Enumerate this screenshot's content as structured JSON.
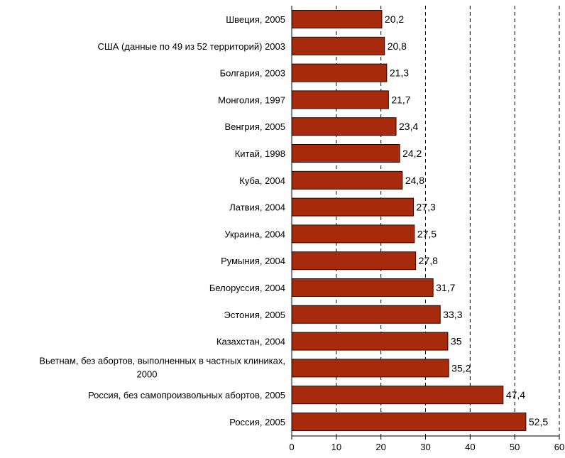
{
  "colors": {
    "bar_fill": "#a82a0c",
    "bar_stroke": "#2a0a02",
    "grid": "#000000"
  },
  "chart_data": {
    "type": "bar",
    "orientation": "horizontal",
    "categories": [
      "Швеция, 2005",
      "США (данные по 49 из 52 территорий) 2003",
      "Болгария, 2003",
      "Монголия, 1997",
      "Венгрия, 2005",
      "Китай, 1998",
      "Куба, 2004",
      "Латвия, 2004",
      "Украина, 2004",
      "Румыния, 2004",
      "Белоруссия, 2004",
      "Эстония, 2005",
      "Казахстан, 2004",
      "Вьетнам, без абортов, выполненных в частных клиниках, 2000",
      "Россия, без самопроизвольных абортов,  2005",
      "Россия, 2005"
    ],
    "category_lines": [
      [
        "Швеция, 2005"
      ],
      [
        "США (данные по 49 из 52 территорий) 2003"
      ],
      [
        "Болгария, 2003"
      ],
      [
        "Монголия, 1997"
      ],
      [
        "Венгрия, 2005"
      ],
      [
        "Китай, 1998"
      ],
      [
        "Куба, 2004"
      ],
      [
        "Латвия, 2004"
      ],
      [
        "Украина, 2004"
      ],
      [
        "Румыния, 2004"
      ],
      [
        "Белоруссия, 2004"
      ],
      [
        "Эстония, 2005"
      ],
      [
        "Казахстан, 2004"
      ],
      [
        "Вьетнам, без абортов, выполненных в частных клиниках,",
        "2000"
      ],
      [
        "Россия, без самопроизвольных абортов,  2005"
      ],
      [
        "Россия, 2005"
      ]
    ],
    "values": [
      20.2,
      20.8,
      21.3,
      21.7,
      23.4,
      24.2,
      24.8,
      27.3,
      27.5,
      27.8,
      31.7,
      33.3,
      35,
      35.2,
      47.4,
      52.5
    ],
    "value_labels": [
      "20,2",
      "20,8",
      "21,3",
      "21,7",
      "23,4",
      "24,2",
      "24,8",
      "27,3",
      "27,5",
      "27,8",
      "31,7",
      "33,3",
      "35",
      "35,2",
      "47,4",
      "52,5"
    ],
    "xlim": [
      0,
      60
    ],
    "x_ticks": [
      "0",
      "10",
      "20",
      "30",
      "40",
      "50",
      "60"
    ],
    "grid": "vertical dashed",
    "title": "",
    "xlabel": "",
    "ylabel": ""
  }
}
